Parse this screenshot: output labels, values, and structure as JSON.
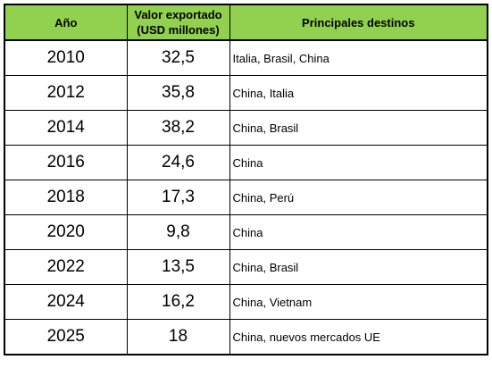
{
  "table": {
    "headers": {
      "year": "Año",
      "value_line1": "Valor exportado",
      "value_line2": "(USD millones)",
      "destinations": "Principales destinos"
    },
    "rows": [
      {
        "year": "2010",
        "value": "32,5",
        "destinations": "Italia, Brasil, China"
      },
      {
        "year": "2012",
        "value": "35,8",
        "destinations": "China, Italia"
      },
      {
        "year": "2014",
        "value": "38,2",
        "destinations": "China, Brasil"
      },
      {
        "year": "2016",
        "value": "24,6",
        "destinations": "China"
      },
      {
        "year": "2018",
        "value": "17,3",
        "destinations": "China, Perú"
      },
      {
        "year": "2020",
        "value": "9,8",
        "destinations": "China"
      },
      {
        "year": "2022",
        "value": "13,5",
        "destinations": "China, Brasil"
      },
      {
        "year": "2024",
        "value": "16,2",
        "destinations": "China, Vietnam"
      },
      {
        "year": "2025",
        "value": "18",
        "destinations": "China, nuevos mercados UE"
      }
    ],
    "colors": {
      "header_background": "#92d050",
      "border": "#000000"
    }
  }
}
